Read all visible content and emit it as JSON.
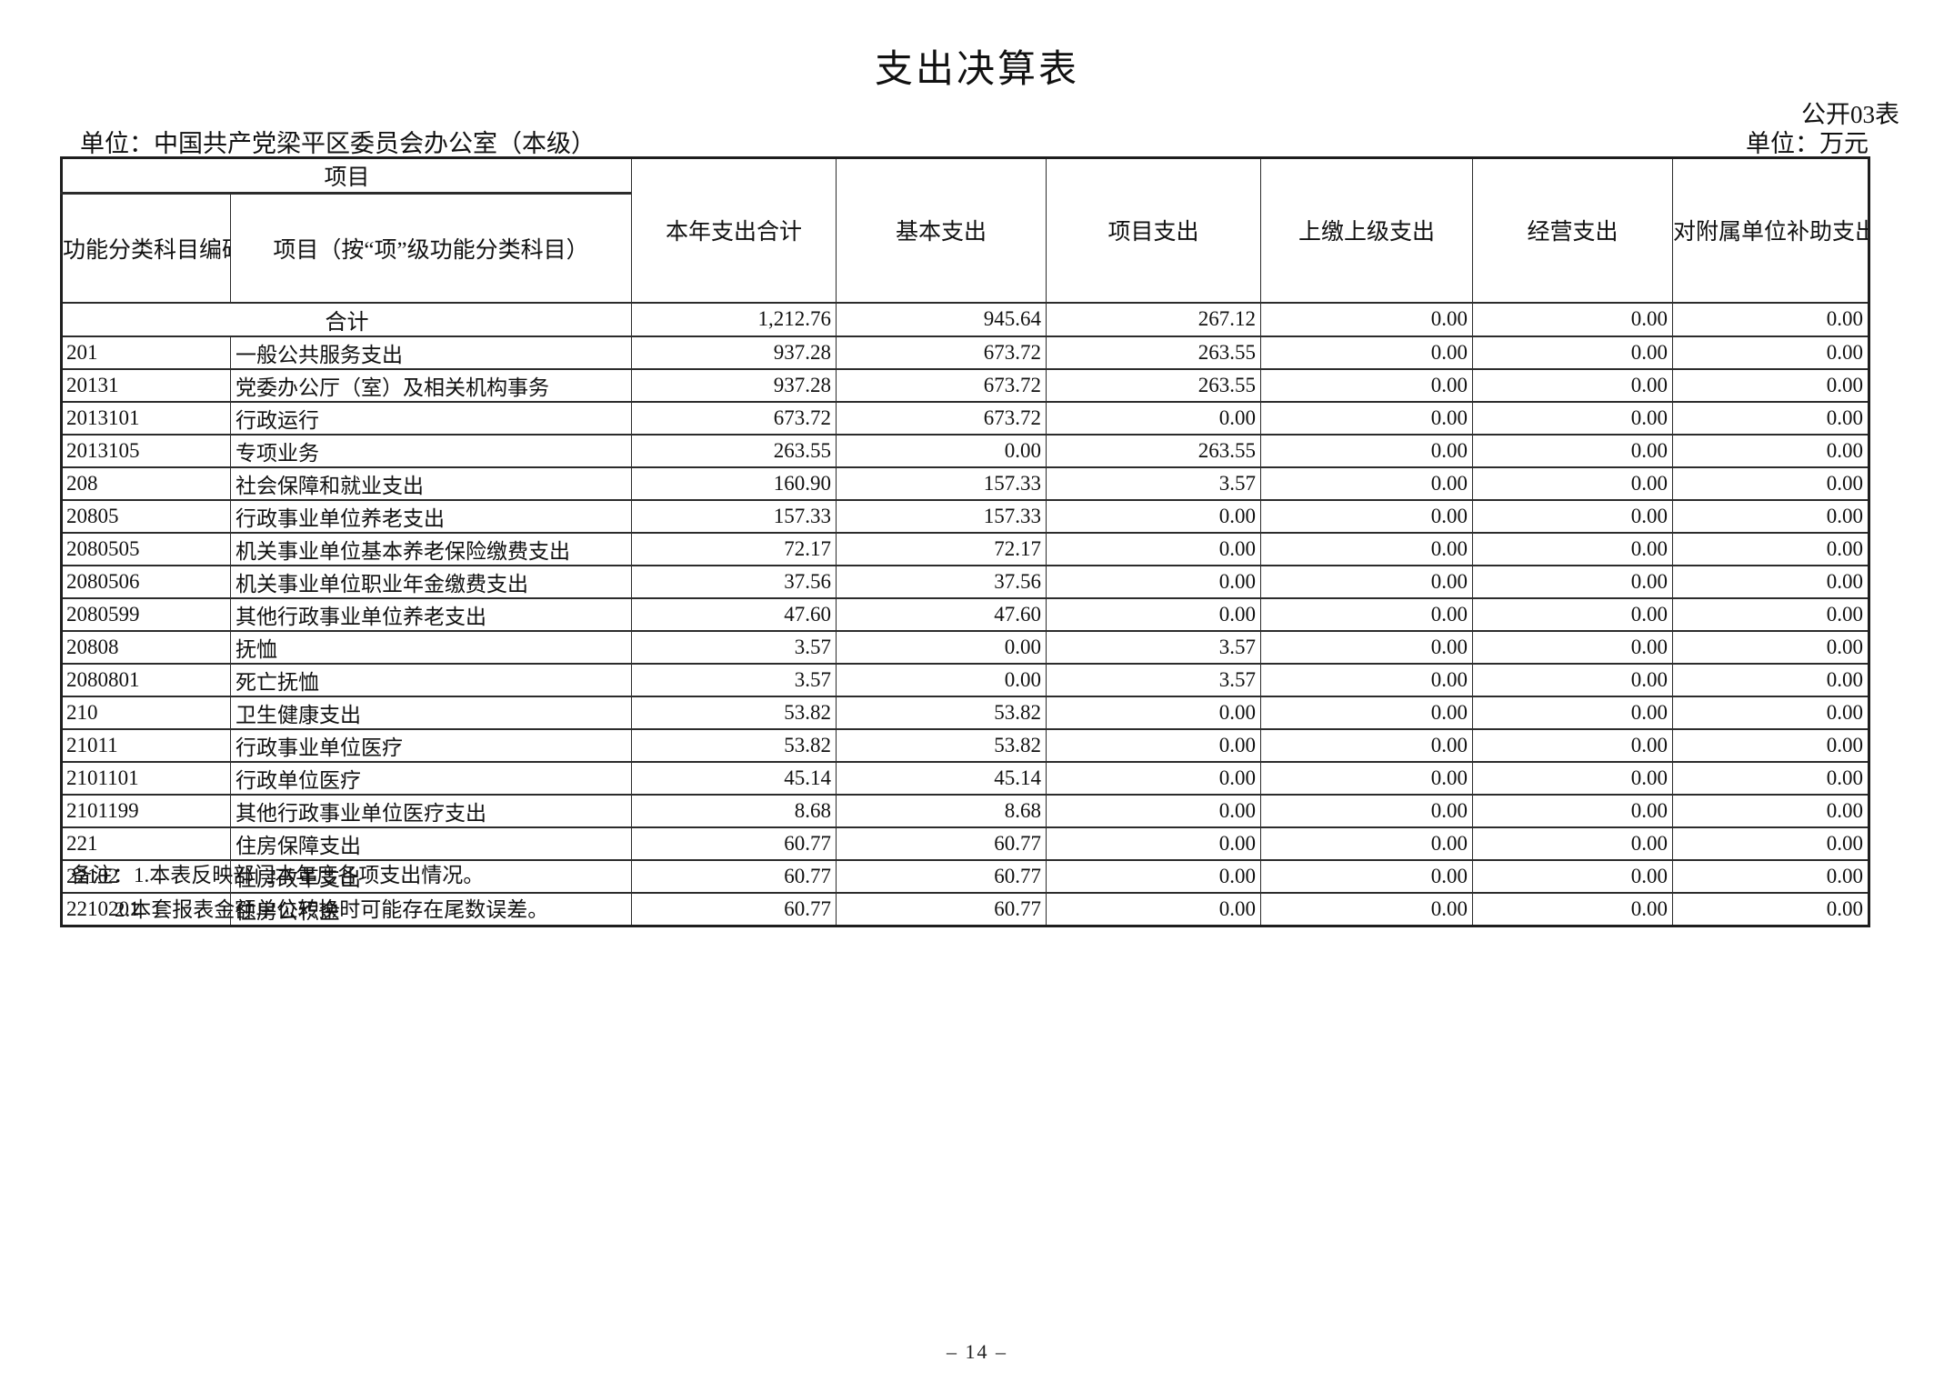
{
  "page": {
    "title": "支出决算表",
    "form_code": "公开03表",
    "unit_line": "单位：中国共产党梁平区委员会办公室（本级）",
    "currency_line": "单位：万元",
    "notes_label": "备注：",
    "notes": [
      "1.本表反映部门本年度各项支出情况。",
      "2.本套报表金额单位转换时可能存在尾数误差。"
    ],
    "page_number": "– 14 –"
  },
  "table": {
    "group_header": "项目",
    "columns": [
      "功能分类科目编码",
      "项目（按“项”级功能分类科目）",
      "本年支出合计",
      "基本支出",
      "项目支出",
      "上缴上级支出",
      "经营支出",
      "对附属单位补助支出"
    ],
    "total_row": {
      "label": "合计",
      "values": [
        "1,212.76",
        "945.64",
        "267.12",
        "0.00",
        "0.00",
        "0.00"
      ]
    },
    "rows": [
      {
        "code": "201",
        "name": "一般公共服务支出",
        "values": [
          "937.28",
          "673.72",
          "263.55",
          "0.00",
          "0.00",
          "0.00"
        ]
      },
      {
        "code": "20131",
        "name": "党委办公厅（室）及相关机构事务",
        "values": [
          "937.28",
          "673.72",
          "263.55",
          "0.00",
          "0.00",
          "0.00"
        ]
      },
      {
        "code": "2013101",
        "name": "行政运行",
        "values": [
          "673.72",
          "673.72",
          "0.00",
          "0.00",
          "0.00",
          "0.00"
        ]
      },
      {
        "code": "2013105",
        "name": "专项业务",
        "values": [
          "263.55",
          "0.00",
          "263.55",
          "0.00",
          "0.00",
          "0.00"
        ]
      },
      {
        "code": "208",
        "name": "社会保障和就业支出",
        "values": [
          "160.90",
          "157.33",
          "3.57",
          "0.00",
          "0.00",
          "0.00"
        ]
      },
      {
        "code": "20805",
        "name": "行政事业单位养老支出",
        "values": [
          "157.33",
          "157.33",
          "0.00",
          "0.00",
          "0.00",
          "0.00"
        ]
      },
      {
        "code": "2080505",
        "name": "机关事业单位基本养老保险缴费支出",
        "values": [
          "72.17",
          "72.17",
          "0.00",
          "0.00",
          "0.00",
          "0.00"
        ]
      },
      {
        "code": "2080506",
        "name": "机关事业单位职业年金缴费支出",
        "values": [
          "37.56",
          "37.56",
          "0.00",
          "0.00",
          "0.00",
          "0.00"
        ]
      },
      {
        "code": "2080599",
        "name": "其他行政事业单位养老支出",
        "values": [
          "47.60",
          "47.60",
          "0.00",
          "0.00",
          "0.00",
          "0.00"
        ]
      },
      {
        "code": "20808",
        "name": "抚恤",
        "values": [
          "3.57",
          "0.00",
          "3.57",
          "0.00",
          "0.00",
          "0.00"
        ]
      },
      {
        "code": "2080801",
        "name": "死亡抚恤",
        "values": [
          "3.57",
          "0.00",
          "3.57",
          "0.00",
          "0.00",
          "0.00"
        ]
      },
      {
        "code": "210",
        "name": "卫生健康支出",
        "values": [
          "53.82",
          "53.82",
          "0.00",
          "0.00",
          "0.00",
          "0.00"
        ]
      },
      {
        "code": "21011",
        "name": "行政事业单位医疗",
        "values": [
          "53.82",
          "53.82",
          "0.00",
          "0.00",
          "0.00",
          "0.00"
        ]
      },
      {
        "code": "2101101",
        "name": "行政单位医疗",
        "values": [
          "45.14",
          "45.14",
          "0.00",
          "0.00",
          "0.00",
          "0.00"
        ]
      },
      {
        "code": "2101199",
        "name": "其他行政事业单位医疗支出",
        "values": [
          "8.68",
          "8.68",
          "0.00",
          "0.00",
          "0.00",
          "0.00"
        ]
      },
      {
        "code": "221",
        "name": "住房保障支出",
        "values": [
          "60.77",
          "60.77",
          "0.00",
          "0.00",
          "0.00",
          "0.00"
        ]
      },
      {
        "code": "22102",
        "name": "住房改革支出",
        "values": [
          "60.77",
          "60.77",
          "0.00",
          "0.00",
          "0.00",
          "0.00"
        ]
      },
      {
        "code": "2210201",
        "name": "住房公积金",
        "values": [
          "60.77",
          "60.77",
          "0.00",
          "0.00",
          "0.00",
          "0.00"
        ]
      }
    ]
  }
}
